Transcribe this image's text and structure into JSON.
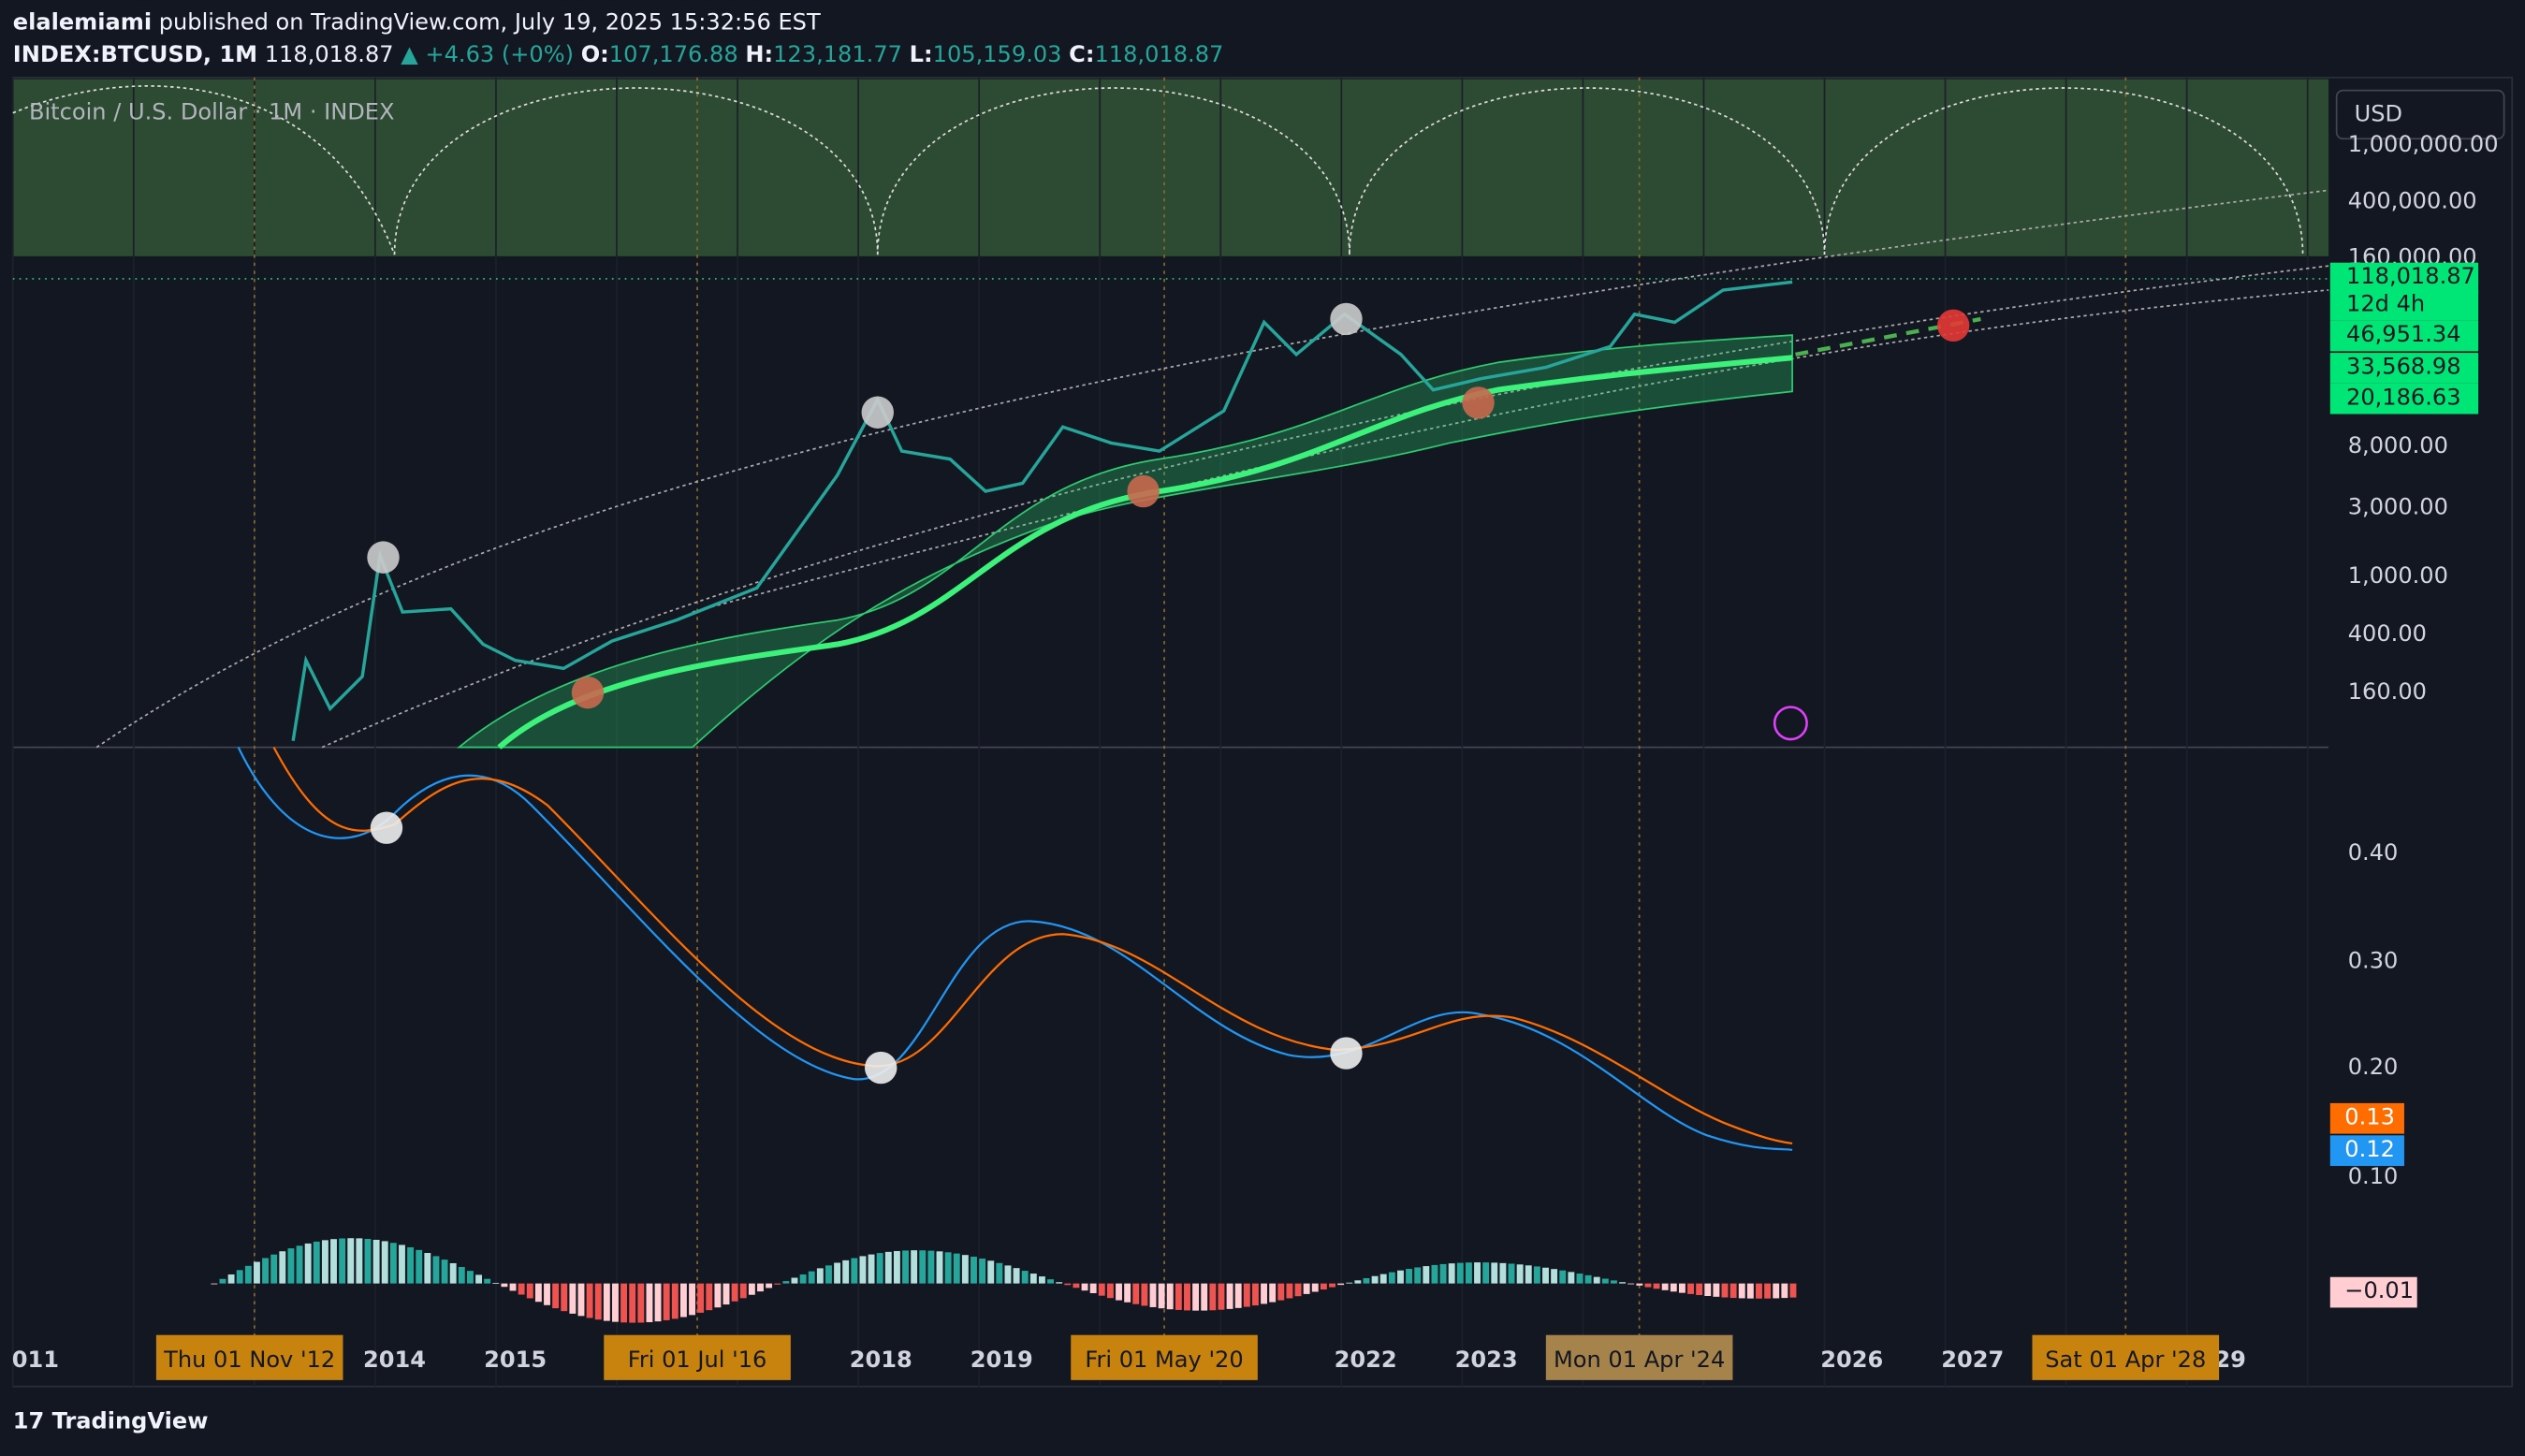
{
  "header": {
    "publisher": "elalemiami",
    "published": "published on TradingView.com, July 19, 2025 15:32:56 EST"
  },
  "ticker": {
    "symbol": "INDEX:BTCUSD, 1M",
    "price": "118,018.87",
    "change": "+4.63 (+0%)",
    "open_label": "O:",
    "open": "107,176.88",
    "high_label": "H:",
    "high": "123,181.77",
    "low_label": "L:",
    "low": "105,159.03",
    "close_label": "C:",
    "close": "118,018.87"
  },
  "chart_title": "Bitcoin / U.S. Dollar · 1M · INDEX",
  "currency": "USD",
  "price_axis": [
    "1,000,000.00",
    "400,000.00",
    "160,000.00",
    "8,000.00",
    "3,000.00",
    "1,000.00",
    "400.00",
    "160.00"
  ],
  "price_badges": [
    "118,018.87",
    "12d 4h",
    "46,951.34",
    "33,568.98",
    "20,186.63"
  ],
  "osc_axis": [
    "0.40",
    "0.30",
    "0.20",
    "0.10"
  ],
  "osc_badges": [
    "0.13",
    "0.12",
    "−0.01"
  ],
  "time_axis": [
    "011",
    "2014",
    "2015",
    "2018",
    "2019",
    "2022",
    "2023",
    "2026",
    "2027",
    "29"
  ],
  "time_badges": [
    "Thu 01 Nov '12",
    "Fri 01 Jul '16",
    "Fri 01 May '20",
    "Mon 01 Apr '24",
    "Sat 01 Apr '28"
  ],
  "footer": "TradingView"
}
